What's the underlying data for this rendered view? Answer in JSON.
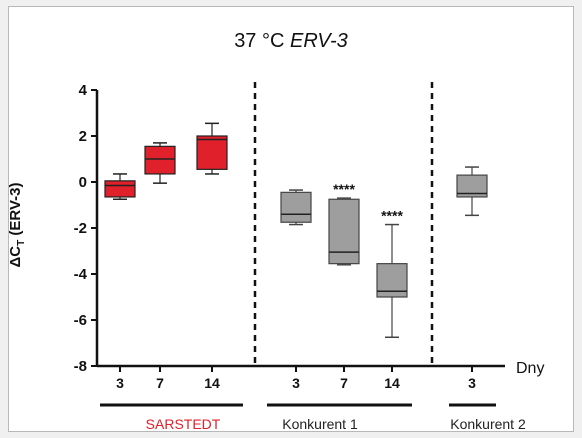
{
  "chart_data": {
    "type": "box",
    "title_main": "37 °C",
    "title_italic": "ERV-3",
    "ylabel": {
      "delta": "ΔC",
      "sub": "T",
      "rest": " (ERV-3)"
    },
    "x_unit_label": "Dny",
    "ylim": [
      -8,
      4
    ],
    "yticks": [
      4,
      2,
      0,
      -2,
      -4,
      -6,
      -8
    ],
    "boxes": [
      {
        "group": "SARSTEDT",
        "day": "3",
        "whisker_low": -0.75,
        "q1": -0.65,
        "median": -0.15,
        "q3": 0.05,
        "whisker_high": 0.35,
        "color": "#e0202a",
        "significance": ""
      },
      {
        "group": "SARSTEDT",
        "day": "7",
        "whisker_low": -0.05,
        "q1": 0.35,
        "median": 1.0,
        "q3": 1.55,
        "whisker_high": 1.7,
        "color": "#e0202a",
        "significance": ""
      },
      {
        "group": "SARSTEDT",
        "day": "14",
        "whisker_low": 0.35,
        "q1": 0.55,
        "median": 1.85,
        "q3": 2.0,
        "whisker_high": 2.55,
        "color": "#e0202a",
        "significance": ""
      },
      {
        "group": "Konkurent 1",
        "day": "3",
        "whisker_low": -1.85,
        "q1": -1.75,
        "median": -1.4,
        "q3": -0.45,
        "whisker_high": -0.35,
        "color": "#9e9e9e",
        "significance": ""
      },
      {
        "group": "Konkurent 1",
        "day": "7",
        "whisker_low": -3.6,
        "q1": -3.55,
        "median": -3.05,
        "q3": -0.75,
        "whisker_high": -0.7,
        "color": "#9e9e9e",
        "significance": "****"
      },
      {
        "group": "Konkurent 1",
        "day": "14",
        "whisker_low": -6.75,
        "q1": -5.0,
        "median": -4.75,
        "q3": -3.55,
        "whisker_high": -1.85,
        "color": "#9e9e9e",
        "significance": "****"
      },
      {
        "group": "Konkurent 2",
        "day": "3",
        "whisker_low": -1.45,
        "q1": -0.65,
        "median": -0.5,
        "q3": 0.3,
        "whisker_high": 0.65,
        "color": "#9e9e9e",
        "significance": ""
      }
    ],
    "groups": [
      {
        "name": "SARSTEDT",
        "color": "#e0202a"
      },
      {
        "name": "Konkurent 1",
        "color": "#222222"
      },
      {
        "name": "Konkurent 2",
        "color": "#222222"
      }
    ]
  }
}
